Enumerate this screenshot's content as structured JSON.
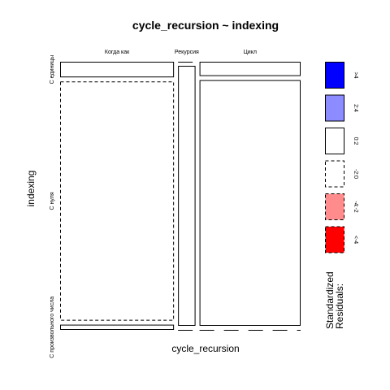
{
  "chart_data": {
    "type": "mosaic",
    "title": "cycle_recursion ~ indexing",
    "xlabel": "cycle_recursion",
    "ylabel": "indexing",
    "x_categories": [
      "Когда как",
      "Рекурсия",
      "Цикл"
    ],
    "y_categories": [
      "С единицы",
      "С нуля",
      "С произвольного числа"
    ],
    "column_proportions": [
      0.49,
      0.075,
      0.435
    ],
    "cells": [
      {
        "x": "Когда как",
        "y": "С единицы",
        "share": 0.06,
        "residual_class": "0:2"
      },
      {
        "x": "Когда как",
        "y": "С нуля",
        "share": 0.92,
        "residual_class": "-2:0"
      },
      {
        "x": "Когда как",
        "y": "С произвольного числа",
        "share": 0.02,
        "residual_class": "0:2"
      },
      {
        "x": "Рекурсия",
        "y": "С единицы",
        "share": 0.0,
        "residual_class": "-2:0"
      },
      {
        "x": "Рекурсия",
        "y": "С нуля",
        "share": 1.0,
        "residual_class": "0:2"
      },
      {
        "x": "Рекурсия",
        "y": "С произвольного числа",
        "share": 0.0,
        "residual_class": "-2:0"
      },
      {
        "x": "Цикл",
        "y": "С единицы",
        "share": 0.055,
        "residual_class": "0:2"
      },
      {
        "x": "Цикл",
        "y": "С нуля",
        "share": 0.945,
        "residual_class": "0:2"
      },
      {
        "x": "Цикл",
        "y": "С произвольного числа",
        "share": 0.0,
        "residual_class": "-2:0"
      }
    ],
    "legend": {
      "title": "Standardized\nResiduals:",
      "placement": "right",
      "entries": [
        {
          "label": ">4",
          "fill": "#0000ff",
          "dashed": false
        },
        {
          "label": "2:4",
          "fill": "#8c8cff",
          "dashed": false
        },
        {
          "label": "0:2",
          "fill": "#ffffff",
          "dashed": false
        },
        {
          "label": "-2:0",
          "fill": "#ffffff",
          "dashed": true
        },
        {
          "label": "-4:-2",
          "fill": "#ff8c8c",
          "dashed": true
        },
        {
          "label": "<-4",
          "fill": "#ff0000",
          "dashed": true
        }
      ]
    }
  }
}
